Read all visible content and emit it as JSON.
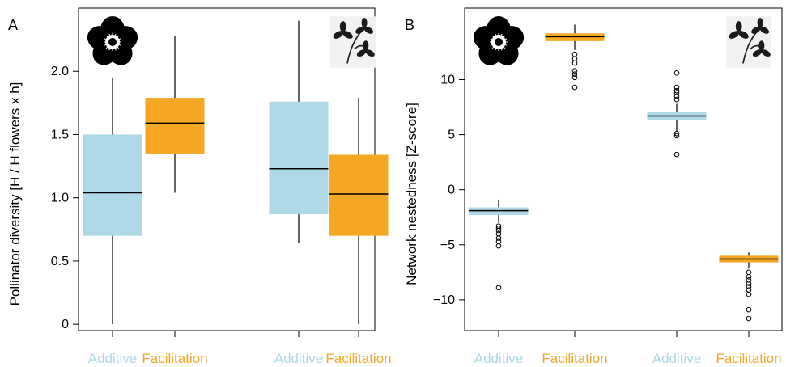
{
  "colors": {
    "additive": "#add8e6",
    "facilitation": "#f5a623",
    "axis": "#000000"
  },
  "icons": [
    "flower-silhouette-icon",
    "clover-leaf-icon"
  ],
  "chart_data": [
    {
      "panel": "A",
      "type": "box",
      "ylabel": "Pollinator diversity [H / H flowers x h]",
      "yticks": [
        0,
        0.5,
        1.0,
        1.5,
        2.0
      ],
      "ytick_labels": [
        "0",
        "0.5",
        "1.0",
        "1.5",
        "2.0"
      ],
      "ylim": [
        -0.05,
        2.5
      ],
      "groups": [
        {
          "icon": "flower-silhouette-icon",
          "boxes": [
            {
              "label": "Additive",
              "color": "#add8e6",
              "whisker_low": 0.0,
              "q1": 0.7,
              "median": 1.04,
              "q3": 1.5,
              "whisker_high": 1.95
            },
            {
              "label": "Facilitation",
              "color": "#f5a623",
              "whisker_low": 1.04,
              "q1": 1.35,
              "median": 1.59,
              "q3": 1.79,
              "whisker_high": 2.28
            }
          ]
        },
        {
          "icon": "clover-leaf-icon",
          "boxes": [
            {
              "label": "Additive",
              "color": "#add8e6",
              "whisker_low": 0.64,
              "q1": 0.87,
              "median": 1.23,
              "q3": 1.76,
              "whisker_high": 2.4
            },
            {
              "label": "Facilitation",
              "color": "#f5a623",
              "whisker_low": 0.0,
              "q1": 0.7,
              "median": 1.03,
              "q3": 1.34,
              "whisker_high": 1.79
            }
          ]
        }
      ]
    },
    {
      "panel": "B",
      "type": "box",
      "ylabel": "Network nestedness [Z-score]",
      "yticks": [
        -10,
        -5,
        0,
        5,
        10
      ],
      "ytick_labels": [
        "−10",
        "−5",
        "0",
        "5",
        "10"
      ],
      "ylim": [
        -12.8,
        16.5
      ],
      "groups": [
        {
          "icon": "flower-silhouette-icon",
          "boxes": [
            {
              "label": "Additive",
              "color": "#add8e6",
              "whisker_low": -3.0,
              "q1": -2.3,
              "median": -1.9,
              "q3": -1.6,
              "whisker_high": -0.9,
              "outliers": [
                -3.3,
                -3.5,
                -3.7,
                -4.0,
                -4.4,
                -4.7,
                -5.1,
                -8.9
              ]
            },
            {
              "label": "Facilitation",
              "color": "#f5a623",
              "whisker_low": 12.7,
              "q1": 13.5,
              "median": 13.9,
              "q3": 14.2,
              "whisker_high": 15.0,
              "outliers": [
                12.3,
                11.9,
                11.5,
                10.8,
                10.5,
                10.2,
                9.3
              ]
            }
          ]
        },
        {
          "icon": "clover-leaf-icon",
          "boxes": [
            {
              "label": "Additive",
              "color": "#add8e6",
              "whisker_low": 5.3,
              "q1": 6.3,
              "median": 6.7,
              "q3": 7.1,
              "whisker_high": 7.8,
              "outliers": [
                9.3,
                9.0,
                8.8,
                8.5,
                8.2,
                10.6,
                5.1,
                4.9,
                3.2
              ]
            },
            {
              "label": "Facilitation",
              "color": "#f5a623",
              "whisker_low": -7.1,
              "q1": -6.6,
              "median": -6.3,
              "q3": -6.0,
              "whisker_high": -5.7,
              "outliers": [
                -7.5,
                -7.9,
                -8.2,
                -8.5,
                -8.8,
                -9.1,
                -9.5,
                -10.9,
                -11.7
              ]
            }
          ]
        }
      ]
    }
  ]
}
